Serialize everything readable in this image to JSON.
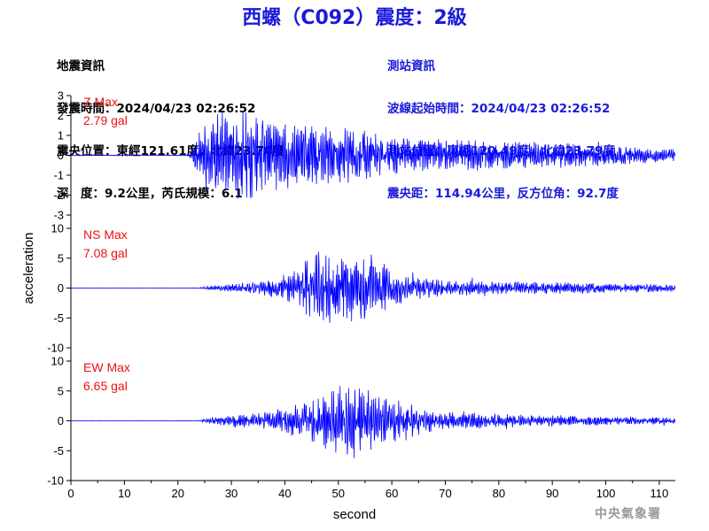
{
  "title": "西螺（C092）震度：2級",
  "quake_info": {
    "heading": "地震資訊",
    "origin_time": "發震時間：2024/04/23 02:26:52",
    "epicenter": "震央位置：東經121.61度，北緯23.74度",
    "depth_magnitude": "深　度：9.2公里，芮氏規模：6.1"
  },
  "station_info": {
    "heading": "測站資訊",
    "wave_start": "波線起始時間：2024/04/23 02:26:52",
    "station_location": "測站位置：東經120.49度，北緯23.79度",
    "distance_azimuth": "震央距：114.94公里，反方位角：92.7度"
  },
  "credit": "中央氣象署",
  "colors": {
    "title": "#1a1adb",
    "trace": "#0000ff",
    "peak_label": "#ee1111",
    "station_text": "#1a1adb"
  },
  "chart_data": {
    "type": "line",
    "xlabel": "second",
    "ylabel": "acceleration",
    "xlim": [
      0,
      113
    ],
    "x_ticks": [
      0,
      10,
      20,
      30,
      40,
      50,
      60,
      70,
      80,
      90,
      100,
      110
    ],
    "panels": [
      {
        "name": "Z",
        "peak_label": "Z Max",
        "peak_value": "2.79 gal",
        "ylim": [
          -3,
          3
        ],
        "y_ticks": [
          -3,
          -2,
          -1,
          0,
          1,
          2,
          3
        ],
        "envelope": [
          [
            0,
            0.02
          ],
          [
            22,
            0.02
          ],
          [
            23,
            0.6
          ],
          [
            25,
            1.8
          ],
          [
            27,
            2.6
          ],
          [
            30,
            2.7
          ],
          [
            34,
            2.2
          ],
          [
            38,
            1.9
          ],
          [
            42,
            1.6
          ],
          [
            47,
            1.5
          ],
          [
            52,
            1.5
          ],
          [
            55,
            1.3
          ],
          [
            60,
            1.0
          ],
          [
            65,
            0.9
          ],
          [
            75,
            0.8
          ],
          [
            85,
            0.7
          ],
          [
            95,
            0.6
          ],
          [
            105,
            0.45
          ],
          [
            113,
            0.35
          ]
        ]
      },
      {
        "name": "NS",
        "peak_label": "NS Max",
        "peak_value": "7.08 gal",
        "ylim": [
          -10,
          10
        ],
        "y_ticks": [
          -10,
          -5,
          0,
          5,
          10
        ],
        "envelope": [
          [
            0,
            0.03
          ],
          [
            24,
            0.05
          ],
          [
            26,
            0.4
          ],
          [
            35,
            1.0
          ],
          [
            40,
            2.5
          ],
          [
            43,
            4.5
          ],
          [
            46,
            6.5
          ],
          [
            50,
            6.0
          ],
          [
            55,
            7.0
          ],
          [
            58,
            4.5
          ],
          [
            62,
            2.5
          ],
          [
            70,
            1.5
          ],
          [
            80,
            1.2
          ],
          [
            90,
            1.0
          ],
          [
            100,
            0.8
          ],
          [
            113,
            0.6
          ]
        ]
      },
      {
        "name": "EW",
        "peak_label": "EW Max",
        "peak_value": "6.65 gal",
        "ylim": [
          -10,
          10
        ],
        "y_ticks": [
          -10,
          -5,
          0,
          5,
          10
        ],
        "envelope": [
          [
            0,
            0.03
          ],
          [
            24,
            0.05
          ],
          [
            26,
            0.6
          ],
          [
            35,
            1.5
          ],
          [
            40,
            2.2
          ],
          [
            45,
            3.5
          ],
          [
            50,
            6.0
          ],
          [
            53,
            6.6
          ],
          [
            58,
            4.5
          ],
          [
            63,
            3.0
          ],
          [
            70,
            1.6
          ],
          [
            80,
            1.2
          ],
          [
            90,
            1.0
          ],
          [
            100,
            0.8
          ],
          [
            113,
            0.6
          ]
        ]
      }
    ]
  }
}
